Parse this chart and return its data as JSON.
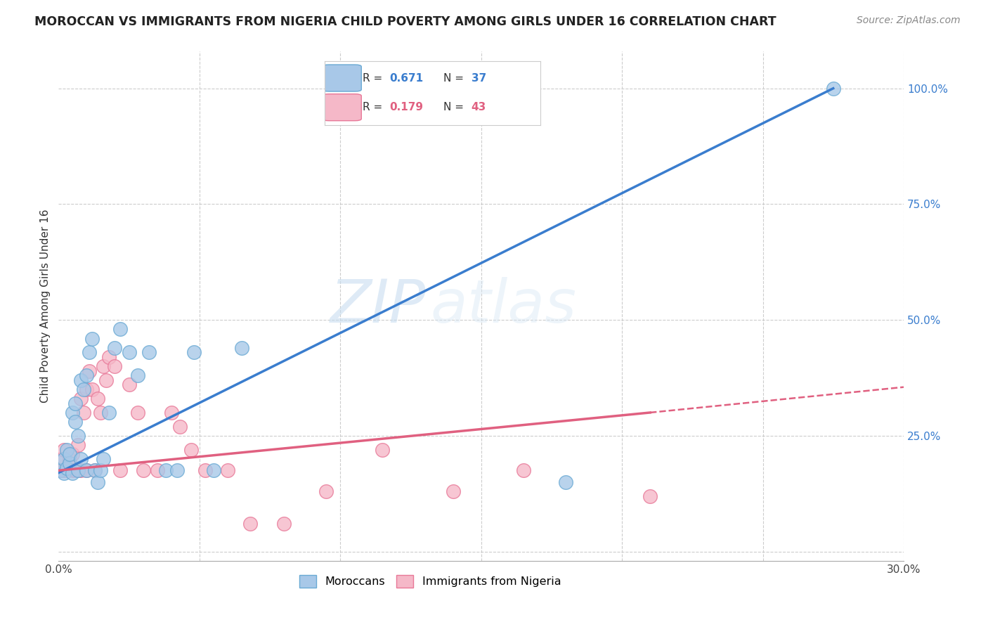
{
  "title": "MOROCCAN VS IMMIGRANTS FROM NIGERIA CHILD POVERTY AMONG GIRLS UNDER 16 CORRELATION CHART",
  "source": "Source: ZipAtlas.com",
  "ylabel": "Child Poverty Among Girls Under 16",
  "xlim": [
    0.0,
    0.3
  ],
  "ylim": [
    -0.02,
    1.08
  ],
  "ytick_vals": [
    0.0,
    0.25,
    0.5,
    0.75,
    1.0
  ],
  "ytick_labels": [
    "",
    "25.0%",
    "50.0%",
    "75.0%",
    "100.0%"
  ],
  "xtick_vals": [
    0.0,
    0.05,
    0.1,
    0.15,
    0.2,
    0.25,
    0.3
  ],
  "moroccan_color": "#a8c8e8",
  "moroccan_edge": "#6aaad4",
  "nigeria_color": "#f5b8c8",
  "nigeria_edge": "#e87898",
  "trendline1_color": "#3a7dce",
  "trendline2_color": "#e06080",
  "watermark_zip": "ZIP",
  "watermark_atlas": "atlas",
  "moroccan_x": [
    0.001,
    0.002,
    0.002,
    0.003,
    0.003,
    0.004,
    0.004,
    0.005,
    0.005,
    0.006,
    0.006,
    0.007,
    0.007,
    0.008,
    0.008,
    0.009,
    0.01,
    0.01,
    0.011,
    0.012,
    0.013,
    0.014,
    0.015,
    0.016,
    0.018,
    0.02,
    0.022,
    0.025,
    0.028,
    0.032,
    0.038,
    0.042,
    0.048,
    0.055,
    0.065,
    0.18,
    0.275
  ],
  "moroccan_y": [
    0.175,
    0.17,
    0.2,
    0.18,
    0.22,
    0.19,
    0.21,
    0.17,
    0.3,
    0.28,
    0.32,
    0.25,
    0.175,
    0.2,
    0.37,
    0.35,
    0.175,
    0.38,
    0.43,
    0.46,
    0.175,
    0.15,
    0.175,
    0.2,
    0.3,
    0.44,
    0.48,
    0.43,
    0.38,
    0.43,
    0.175,
    0.175,
    0.43,
    0.175,
    0.44,
    0.15,
    1.0
  ],
  "nigeria_x": [
    0.001,
    0.001,
    0.002,
    0.002,
    0.003,
    0.003,
    0.004,
    0.005,
    0.005,
    0.006,
    0.007,
    0.007,
    0.008,
    0.008,
    0.009,
    0.01,
    0.01,
    0.011,
    0.012,
    0.013,
    0.014,
    0.015,
    0.016,
    0.017,
    0.018,
    0.02,
    0.022,
    0.025,
    0.028,
    0.03,
    0.035,
    0.04,
    0.043,
    0.047,
    0.052,
    0.06,
    0.068,
    0.08,
    0.095,
    0.115,
    0.14,
    0.165,
    0.21
  ],
  "nigeria_y": [
    0.175,
    0.2,
    0.175,
    0.22,
    0.175,
    0.18,
    0.2,
    0.175,
    0.21,
    0.175,
    0.175,
    0.23,
    0.175,
    0.33,
    0.3,
    0.175,
    0.35,
    0.39,
    0.35,
    0.175,
    0.33,
    0.3,
    0.4,
    0.37,
    0.42,
    0.4,
    0.175,
    0.36,
    0.3,
    0.175,
    0.175,
    0.3,
    0.27,
    0.22,
    0.175,
    0.175,
    0.06,
    0.06,
    0.13,
    0.22,
    0.13,
    0.175,
    0.12
  ],
  "trendline1_x0": 0.0,
  "trendline1_y0": 0.17,
  "trendline1_x1": 0.275,
  "trendline1_y1": 1.0,
  "trendline2_x0": 0.0,
  "trendline2_y0": 0.175,
  "trendline2_xsolid": 0.21,
  "trendline2_ysolid": 0.3,
  "trendline2_x1": 0.3,
  "trendline2_y1": 0.355
}
